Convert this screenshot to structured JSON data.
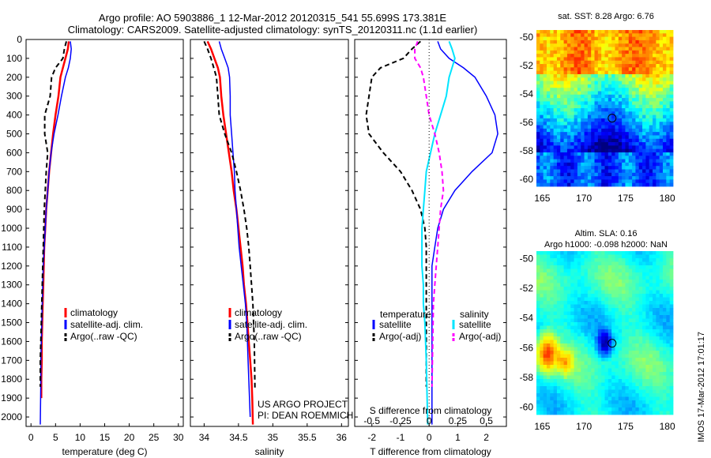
{
  "header": {
    "line1": "Argo profile: AO 5903886_1 12-Mar-2012 20120315_541 55.699S 173.381E",
    "line2": "Climatology: CARS2009. Satellite-adjusted climatology: synTS_20120311.nc (1.1d earlier)"
  },
  "colors": {
    "climatology": "#ff0000",
    "satellite": "#0000ff",
    "argo": "#000000",
    "argo_adj_s": "#ff00ff",
    "sat_s": "#00e5ff"
  },
  "depth_axis": {
    "ylim": [
      0,
      2050
    ],
    "ticks": [
      0,
      100,
      200,
      300,
      400,
      500,
      600,
      700,
      800,
      900,
      1000,
      1100,
      1200,
      1300,
      1400,
      1500,
      1600,
      1700,
      1800,
      1900,
      2000
    ]
  },
  "chart_data": [
    {
      "type": "line",
      "xlabel": "temperature (deg C)",
      "xlim": [
        -1,
        31
      ],
      "xticks": [
        0,
        5,
        10,
        15,
        20,
        25,
        30
      ],
      "legend": {
        "placement": "lower-middle",
        "entries": [
          "climatology",
          "satellite-adj. clim.",
          "Argo(..raw -QC)"
        ]
      },
      "series": [
        {
          "name": "climatology",
          "color": "#ff0000",
          "dash": "none",
          "width": 2.5,
          "x": [
            7.7,
            7.5,
            7.0,
            6.5,
            6.0,
            5.6,
            5.0,
            4.5,
            4.1,
            3.7,
            3.4,
            3.1,
            2.9,
            2.7,
            2.6,
            2.5,
            2.4,
            2.3,
            2.2,
            2.2,
            2.1,
            2.1
          ],
          "y": [
            10,
            50,
            100,
            150,
            200,
            300,
            400,
            500,
            600,
            700,
            800,
            900,
            1000,
            1100,
            1200,
            1300,
            1400,
            1500,
            1600,
            1700,
            1800,
            1900
          ]
        },
        {
          "name": "satellite-adj. clim.",
          "color": "#0000ff",
          "dash": "none",
          "width": 1.5,
          "x": [
            8.0,
            8.2,
            8.0,
            7.6,
            7.0,
            6.2,
            5.5,
            4.7,
            4.1,
            3.7,
            3.4,
            3.1,
            2.9,
            2.7,
            2.5,
            2.4,
            2.3,
            2.2,
            2.1,
            2.0,
            2.0,
            1.9
          ],
          "y": [
            10,
            50,
            100,
            150,
            200,
            300,
            400,
            500,
            600,
            700,
            800,
            900,
            1000,
            1100,
            1200,
            1300,
            1400,
            1500,
            1600,
            1700,
            1800,
            2040
          ]
        },
        {
          "name": "Argo(..raw -QC)",
          "color": "#000000",
          "dash": "6,4",
          "width": 2,
          "x": [
            7.2,
            6.8,
            6.5,
            5.0,
            4.2,
            3.9,
            2.8,
            2.8,
            3.4,
            3.1,
            2.9,
            2.7,
            2.6,
            2.5,
            2.4,
            2.3,
            2.2,
            2.1,
            2.0,
            1.9,
            1.9
          ],
          "y": [
            10,
            50,
            100,
            150,
            200,
            300,
            400,
            500,
            600,
            700,
            800,
            900,
            1000,
            1100,
            1200,
            1300,
            1400,
            1500,
            1600,
            1700,
            1840
          ]
        }
      ]
    },
    {
      "type": "line",
      "xlabel": "salinity",
      "xlim": [
        33.8,
        36.1
      ],
      "xticks": [
        34,
        34.5,
        35,
        35.5,
        36
      ],
      "legend": {
        "placement": "lower-middle",
        "entries": [
          "climatology",
          "satellite-adj. clim.",
          "Argo(..raw -QC)"
        ]
      },
      "annotation": [
        "US ARGO PROJECT",
        "PI: DEAN ROEMMICH"
      ],
      "series": [
        {
          "name": "climatology",
          "color": "#ff0000",
          "dash": "none",
          "width": 2.5,
          "x": [
            34.05,
            34.1,
            34.15,
            34.2,
            34.23,
            34.25,
            34.28,
            34.32,
            34.36,
            34.4,
            34.43,
            34.47,
            34.5,
            34.53,
            34.56,
            34.58,
            34.61,
            34.63,
            34.65,
            34.67,
            34.69,
            34.7,
            34.71
          ],
          "y": [
            10,
            50,
            100,
            150,
            200,
            300,
            400,
            500,
            600,
            700,
            800,
            900,
            1000,
            1100,
            1200,
            1300,
            1400,
            1500,
            1600,
            1700,
            1800,
            1900,
            2040
          ]
        },
        {
          "name": "satellite-adj. clim.",
          "color": "#0000ff",
          "dash": "none",
          "width": 1.5,
          "x": [
            34.22,
            34.25,
            34.3,
            34.35,
            34.37,
            34.38,
            34.38,
            34.4,
            34.42,
            34.44,
            34.45,
            34.47,
            34.49,
            34.51,
            34.54,
            34.57,
            34.6,
            34.62,
            34.63,
            34.64,
            34.65,
            34.66,
            34.67
          ],
          "y": [
            10,
            50,
            100,
            150,
            200,
            300,
            400,
            500,
            600,
            700,
            800,
            900,
            1000,
            1100,
            1200,
            1300,
            1400,
            1500,
            1600,
            1700,
            1800,
            1900,
            2000
          ]
        },
        {
          "name": "Argo(..raw -QC)",
          "color": "#000000",
          "dash": "6,4",
          "width": 2,
          "x": [
            34.0,
            34.05,
            34.1,
            34.14,
            34.18,
            34.2,
            34.22,
            34.3,
            34.4,
            34.47,
            34.53,
            34.58,
            34.62,
            34.65,
            34.67,
            34.69,
            34.71,
            34.72,
            34.73,
            34.74
          ],
          "y": [
            10,
            50,
            100,
            150,
            200,
            300,
            400,
            500,
            600,
            700,
            800,
            900,
            1000,
            1100,
            1200,
            1300,
            1400,
            1500,
            1600,
            1850
          ]
        }
      ]
    },
    {
      "type": "line",
      "xlabel": "T difference from climatology",
      "xlabel_top": "S difference from climatology",
      "xlim": [
        -2.6,
        2.7
      ],
      "xticks": [
        -2,
        -1,
        0,
        1,
        2
      ],
      "xticks_top": {
        "labels": [
          "-0.5",
          "-0.25",
          "0",
          "0.25",
          "0.5"
        ],
        "positions": [
          -2,
          -1,
          0,
          1,
          2
        ]
      },
      "legend": {
        "placement": "lower-middle",
        "titles": [
          "temperature",
          "salinity"
        ],
        "entries": [
          "satellite",
          "Argo(-adj)",
          "satellite",
          "Argo(-adj)"
        ]
      },
      "series": [
        {
          "name": "temperature satellite",
          "color": "#0000ff",
          "dash": "none",
          "width": 1.5,
          "x": [
            0.3,
            0.4,
            0.7,
            1.2,
            1.6,
            2.0,
            2.3,
            2.4,
            2.2,
            1.5,
            0.9,
            0.5,
            0.3,
            0.2,
            0.1,
            0.1,
            0.1,
            0.1,
            0.1,
            0.1
          ],
          "y": [
            10,
            50,
            100,
            150,
            200,
            300,
            400,
            500,
            600,
            700,
            800,
            900,
            1000,
            1100,
            1200,
            1300,
            1400,
            1500,
            1700,
            2040
          ]
        },
        {
          "name": "temperature Argo(-adj)",
          "color": "#000000",
          "dash": "6,4",
          "width": 2,
          "x": [
            -0.3,
            -0.6,
            -0.9,
            -1.7,
            -2.0,
            -2.1,
            -2.2,
            -2.1,
            -1.6,
            -1.0,
            -0.6,
            -0.3,
            -0.15,
            -0.1,
            -0.1,
            -0.1,
            -0.1,
            -0.1,
            -0.1,
            -0.1
          ],
          "y": [
            10,
            50,
            100,
            150,
            200,
            300,
            400,
            500,
            600,
            700,
            800,
            900,
            1000,
            1100,
            1200,
            1300,
            1400,
            1500,
            1600,
            1840
          ]
        },
        {
          "name": "salinity satellite",
          "color": "#00e5ff",
          "dash": "none",
          "width": 2,
          "x": [
            0.7,
            0.8,
            0.9,
            0.8,
            0.7,
            0.6,
            0.4,
            0.2,
            0.05,
            -0.1,
            -0.15,
            -0.2,
            -0.25,
            -0.25,
            -0.25,
            -0.2,
            -0.2,
            -0.15,
            -0.1,
            -0.05
          ],
          "y": [
            10,
            50,
            100,
            150,
            200,
            300,
            400,
            500,
            600,
            700,
            800,
            900,
            1000,
            1100,
            1200,
            1300,
            1400,
            1500,
            1700,
            2040
          ]
        },
        {
          "name": "salinity Argo(-adj)",
          "color": "#ff00ff",
          "dash": "6,4",
          "width": 2,
          "x": [
            -0.4,
            -0.5,
            -0.5,
            -0.3,
            -0.2,
            -0.1,
            0.0,
            0.2,
            0.35,
            0.45,
            0.5,
            0.4,
            0.35,
            0.3,
            0.25,
            0.2,
            0.15,
            0.1
          ],
          "y": [
            10,
            50,
            100,
            150,
            200,
            300,
            400,
            500,
            600,
            700,
            800,
            900,
            1000,
            1100,
            1200,
            1300,
            1400,
            1840
          ]
        }
      ]
    },
    {
      "type": "heatmap",
      "title": "sat. SST: 8.28 Argo: 6.76",
      "xlim": [
        164.3,
        180.7
      ],
      "ylim": [
        -60.5,
        -49.5
      ],
      "xticks": [
        165,
        170,
        175,
        180
      ],
      "yticks": [
        -50,
        -52,
        -54,
        -56,
        -58,
        -60
      ],
      "argo_position": {
        "lon": 173.381,
        "lat": -55.699
      }
    },
    {
      "type": "heatmap",
      "title": "Altim. SLA: 0.16",
      "subtitle": "Argo h1000: -0.098 h2000: NaN",
      "xlim": [
        164.3,
        180.7
      ],
      "ylim": [
        -60.5,
        -49.5
      ],
      "xticks": [
        165,
        170,
        175,
        180
      ],
      "yticks": [
        -50,
        -52,
        -54,
        -56,
        -58,
        -60
      ],
      "argo_position": {
        "lon": 173.381,
        "lat": -55.699
      }
    }
  ],
  "footer_note": "IMOS 17-Mar-2012 17:01:17"
}
